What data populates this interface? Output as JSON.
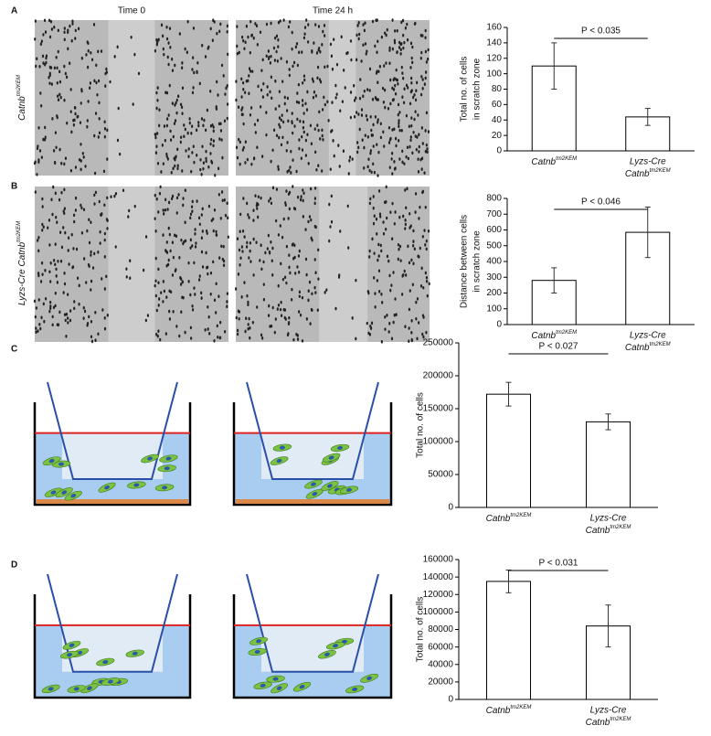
{
  "figure": {
    "panels": [
      "A",
      "B",
      "C",
      "D"
    ],
    "columns": [
      "Time 0",
      "Time 24 h"
    ],
    "row_labels": [
      {
        "label": "Catnb",
        "sup": "tm2KEM"
      },
      {
        "pre": "Lyzs-Cre",
        "label": "Catnb",
        "sup": "tm2KEM"
      }
    ]
  },
  "chart_data": [
    {
      "type": "bar",
      "ylabel": [
        "Total no. of cells",
        "in scratch zone"
      ],
      "categories": [
        {
          "label": "Catnb",
          "sup": "tm2KEM"
        },
        {
          "pre": "Lyzs-Cre",
          "label": "Catnb",
          "sup": "tm2KEM"
        }
      ],
      "values": [
        110,
        44
      ],
      "errors": [
        30,
        11
      ],
      "color": "#ffffff",
      "ylim": [
        0,
        160
      ],
      "yticks": [
        0,
        20,
        40,
        60,
        80,
        100,
        120,
        140,
        160
      ],
      "annotation": "P < 0.035"
    },
    {
      "type": "bar",
      "ylabel": [
        "Distance between cells",
        "in scratch zone"
      ],
      "categories": [
        {
          "label": "Catnb",
          "sup": "tm2KEM"
        },
        {
          "pre": "Lyzs-Cre",
          "label": "Catnb",
          "sup": "tm2KEM"
        }
      ],
      "values": [
        280,
        585
      ],
      "errors": [
        80,
        160
      ],
      "color": "#ffffff",
      "ylim": [
        0,
        800
      ],
      "yticks": [
        0,
        100,
        200,
        300,
        400,
        500,
        600,
        700,
        800
      ],
      "annotation": "P < 0.046"
    },
    {
      "type": "bar",
      "ylabel": [
        "Total no. of cells"
      ],
      "categories": [
        {
          "label": "Catnb",
          "sup": "tm2KEM"
        },
        {
          "pre": "Lyzs-Cre",
          "label": "Catnb",
          "sup": "tm2KEM"
        }
      ],
      "values": [
        172000,
        130000
      ],
      "errors": [
        18000,
        12000
      ],
      "color": "#ffffff",
      "ylim": [
        0,
        250000
      ],
      "yticks": [
        0,
        50000,
        100000,
        150000,
        200000,
        250000
      ],
      "annotation": "P < 0.027"
    },
    {
      "type": "bar",
      "ylabel": [
        "Total no. of cells"
      ],
      "categories": [
        {
          "label": "Catnb",
          "sup": "tm2KEM"
        },
        {
          "pre": "Lyzs-Cre",
          "label": "Catnb",
          "sup": "tm2KEM"
        }
      ],
      "values": [
        135000,
        84000
      ],
      "errors": [
        13000,
        24000
      ],
      "color": "#ffffff",
      "ylim": [
        0,
        160000
      ],
      "yticks": [
        0,
        20000,
        40000,
        60000,
        80000,
        100000,
        120000,
        140000,
        160000
      ],
      "annotation": "P < 0.031"
    }
  ]
}
